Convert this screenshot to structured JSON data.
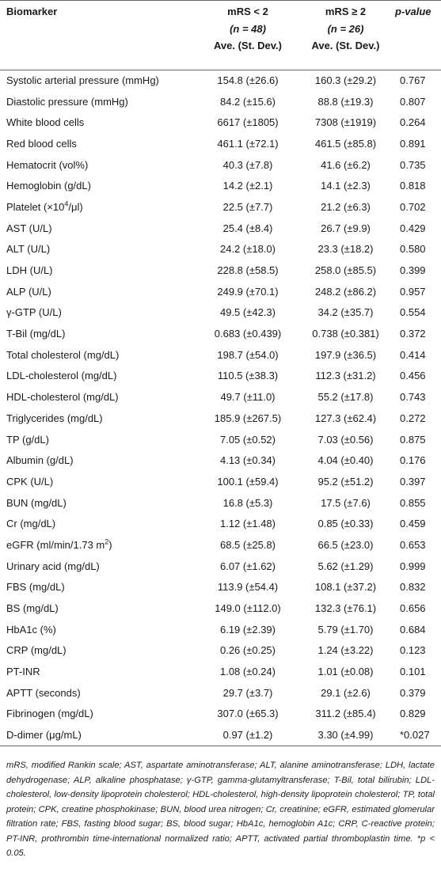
{
  "header": {
    "biomarker": "Biomarker",
    "group1": {
      "label": "mRS < 2",
      "n_label": "(n = 48)",
      "stat": "Ave. (St. Dev.)"
    },
    "group2": {
      "label": "mRS ≥ 2",
      "n_label": "(n = 26)",
      "stat": "Ave. (St. Dev.)"
    },
    "pvalue": "p-value"
  },
  "rows": [
    {
      "name": "Systolic arterial pressure (mmHg)",
      "g1": "154.8 (±26.6)",
      "g2": "160.3 (±29.2)",
      "p": "0.767"
    },
    {
      "name": "Diastolic pressure (mmHg)",
      "g1": "84.2 (±15.6)",
      "g2": "88.8 (±19.3)",
      "p": "0.807"
    },
    {
      "name": "White blood cells",
      "g1": "6617 (±1805)",
      "g2": "7308 (±1919)",
      "p": "0.264"
    },
    {
      "name": "Red blood cells",
      "g1": "461.1 (±72.1)",
      "g2": "461.5 (±85.8)",
      "p": "0.891"
    },
    {
      "name": "Hematocrit (vol%)",
      "g1": "40.3 (±7.8)",
      "g2": "41.6 (±6.2)",
      "p": "0.735"
    },
    {
      "name": "Hemoglobin (g/dL)",
      "g1": "14.2 (±2.1)",
      "g2": "14.1 (±2.3)",
      "p": "0.818"
    },
    {
      "name": "Platelet (×10",
      "sup": "4",
      "suffix": "/μl)",
      "g1": "22.5 (±7.7)",
      "g2": "21.2 (±6.3)",
      "p": "0.702"
    },
    {
      "name": "AST (U/L)",
      "g1": "25.4 (±8.4)",
      "g2": "26.7 (±9.9)",
      "p": "0.429"
    },
    {
      "name": "ALT (U/L)",
      "g1": "24.2 (±18.0)",
      "g2": "23.3 (±18.2)",
      "p": "0.580"
    },
    {
      "name": "LDH (U/L)",
      "g1": "228.8 (±58.5)",
      "g2": "258.0 (±85.5)",
      "p": "0.399"
    },
    {
      "name": "ALP (U/L)",
      "g1": "249.9 (±70.1)",
      "g2": "248.2 (±86.2)",
      "p": "0.957"
    },
    {
      "name": "γ-GTP (U/L)",
      "g1": "49.5 (±42.3)",
      "g2": "34.2 (±35.7)",
      "p": "0.554"
    },
    {
      "name": "T-Bil (mg/dL)",
      "g1": "0.683 (±0.439)",
      "g2": "0.738 (±0.381)",
      "p": "0.372"
    },
    {
      "name": "Total cholesterol (mg/dL)",
      "g1": "198.7 (±54.0)",
      "g2": "197.9 (±36.5)",
      "p": "0.414"
    },
    {
      "name": "LDL-cholesterol (mg/dL)",
      "g1": "110.5 (±38.3)",
      "g2": "112.3 (±31.2)",
      "p": "0.456"
    },
    {
      "name": "HDL-cholesterol (mg/dL)",
      "g1": "49.7 (±11.0)",
      "g2": "55.2 (±17.8)",
      "p": "0.743"
    },
    {
      "name": "Triglycerides (mg/dL)",
      "g1": "185.9 (±267.5)",
      "g2": "127.3 (±62.4)",
      "p": "0.272"
    },
    {
      "name": "TP (g/dL)",
      "g1": "7.05 (±0.52)",
      "g2": "7.03 (±0.56)",
      "p": "0.875"
    },
    {
      "name": "Albumin (g/dL)",
      "g1": "4.13 (±0.34)",
      "g2": "4.04 (±0.40)",
      "p": "0.176"
    },
    {
      "name": "CPK (U/L)",
      "g1": "100.1 (±59.4)",
      "g2": "95.2 (±51.2)",
      "p": "0.397"
    },
    {
      "name": "BUN (mg/dL)",
      "g1": "16.8 (±5.3)",
      "g2": "17.5 (±7.6)",
      "p": "0.855"
    },
    {
      "name": "Cr (mg/dL)",
      "g1": "1.12 (±1.48)",
      "g2": "0.85 (±0.33)",
      "p": "0.459"
    },
    {
      "name": "eGFR (ml/min/1.73 m",
      "sup": "2",
      "suffix": ")",
      "g1": "68.5 (±25.8)",
      "g2": "66.5 (±23.0)",
      "p": "0.653"
    },
    {
      "name": "Urinary acid (mg/dL)",
      "g1": "6.07 (±1.62)",
      "g2": "5.62 (±1.29)",
      "p": "0.999"
    },
    {
      "name": "FBS (mg/dL)",
      "g1": "113.9 (±54.4)",
      "g2": "108.1 (±37.2)",
      "p": "0.832"
    },
    {
      "name": "BS (mg/dL)",
      "g1": "149.0 (±112.0)",
      "g2": "132.3 (±76.1)",
      "p": "0.656"
    },
    {
      "name": "HbA1c (%)",
      "g1": "6.19 (±2.39)",
      "g2": "5.79 (±1.70)",
      "p": "0.684"
    },
    {
      "name": "CRP (mg/dL)",
      "g1": "0.26 (±0.25)",
      "g2": "1.24 (±3.22)",
      "p": "0.123"
    },
    {
      "name": "PT-INR",
      "g1": "1.08 (±0.24)",
      "g2": "1.01 (±0.08)",
      "p": "0.101"
    },
    {
      "name": "APTT (seconds)",
      "g1": "29.7 (±3.7)",
      "g2": "29.1 (±2.6)",
      "p": "0.379"
    },
    {
      "name": "Fibrinogen (mg/dL)",
      "g1": "307.0 (±65.3)",
      "g2": "311.2 (±85.4)",
      "p": "0.829"
    },
    {
      "name": "D-dimer (μg/mL)",
      "g1": "0.97 (±1.2)",
      "g2": "3.30 (±4.99)",
      "p": "*0.027"
    }
  ],
  "footnote": "mRS, modified Rankin scale; AST, aspartate aminotransferase; ALT, alanine aminotransferase; LDH, lactate dehydrogenase; ALP, alkaline phosphatase; γ-GTP, gamma-glutamyltransferase; T-Bil, total bilirubin; LDL-cholesterol, low-density lipoprotein cholesterol; HDL-cholesterol, high-density lipoprotein cholesterol; TP, total protein; CPK, creatine phosphokinase; BUN, blood urea nitrogen; Cr, creatinine; eGFR, estimated glomerular filtration rate; FBS, fasting blood sugar; BS, blood sugar; HbA1c, hemoglobin A1c; CRP, C-reactive protein; PT-INR, prothrombin time-international normalized ratio; APTT, activated partial thromboplastin time. *p < 0.05."
}
